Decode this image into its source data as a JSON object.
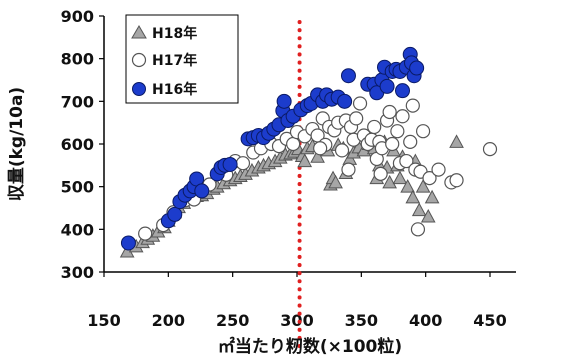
{
  "chart_data": {
    "type": "scatter",
    "title": "",
    "xlabel": "㎡当たり籾数(×100粒)",
    "ylabel": "収量(kg/10a)",
    "xlim": [
      150,
      450
    ],
    "ylim": [
      300,
      900
    ],
    "x_ticks": [
      150,
      200,
      250,
      300,
      350,
      400,
      450
    ],
    "y_ticks": [
      300,
      400,
      500,
      600,
      700,
      800,
      900
    ],
    "x_tick_labels": [
      "150",
      "200",
      "250",
      "300",
      "350",
      "400",
      "450"
    ],
    "y_tick_labels": [
      "300",
      "400",
      "500",
      "600",
      "700",
      "800",
      "900"
    ],
    "grid": false,
    "legend_position": "top-left",
    "reference_line": {
      "x": 302,
      "style": "dotted",
      "color": "#e02020"
    },
    "series": [
      {
        "name": "H18年",
        "marker": "triangle",
        "color": "#a6a6a6",
        "points": [
          [
            168,
            348
          ],
          [
            175,
            360
          ],
          [
            180,
            370
          ],
          [
            184,
            378
          ],
          [
            188,
            385
          ],
          [
            192,
            395
          ],
          [
            197,
            405
          ],
          [
            200,
            420
          ],
          [
            205,
            440
          ],
          [
            208,
            452
          ],
          [
            212,
            462
          ],
          [
            215,
            470
          ],
          [
            218,
            472
          ],
          [
            222,
            478
          ],
          [
            226,
            480
          ],
          [
            230,
            485
          ],
          [
            235,
            495
          ],
          [
            238,
            500
          ],
          [
            243,
            508
          ],
          [
            248,
            515
          ],
          [
            252,
            520
          ],
          [
            256,
            525
          ],
          [
            260,
            530
          ],
          [
            265,
            538
          ],
          [
            270,
            545
          ],
          [
            274,
            550
          ],
          [
            278,
            555
          ],
          [
            283,
            560
          ],
          [
            287,
            568
          ],
          [
            291,
            575
          ],
          [
            295,
            578
          ],
          [
            298,
            582
          ],
          [
            301,
            588
          ],
          [
            304,
            572
          ],
          [
            306,
            560
          ],
          [
            308,
            590
          ],
          [
            312,
            595
          ],
          [
            316,
            570
          ],
          [
            320,
            600
          ],
          [
            324,
            585
          ],
          [
            326,
            505
          ],
          [
            328,
            520
          ],
          [
            330,
            510
          ],
          [
            332,
            598
          ],
          [
            336,
            590
          ],
          [
            338,
            532
          ],
          [
            341,
            565
          ],
          [
            344,
            580
          ],
          [
            348,
            592
          ],
          [
            352,
            585
          ],
          [
            356,
            600
          ],
          [
            360,
            590
          ],
          [
            362,
            520
          ],
          [
            364,
            550
          ],
          [
            368,
            605
          ],
          [
            370,
            545
          ],
          [
            372,
            510
          ],
          [
            375,
            585
          ],
          [
            378,
            550
          ],
          [
            380,
            520
          ],
          [
            382,
            570
          ],
          [
            386,
            500
          ],
          [
            390,
            475
          ],
          [
            392,
            560
          ],
          [
            395,
            445
          ],
          [
            398,
            500
          ],
          [
            402,
            430
          ],
          [
            405,
            475
          ],
          [
            424,
            605
          ]
        ]
      },
      {
        "name": "H17年",
        "marker": "circle",
        "color": "#ffffff",
        "points": [
          [
            182,
            390
          ],
          [
            196,
            410
          ],
          [
            204,
            440
          ],
          [
            213,
            468
          ],
          [
            220,
            470
          ],
          [
            232,
            505
          ],
          [
            245,
            528
          ],
          [
            252,
            560
          ],
          [
            258,
            555
          ],
          [
            266,
            580
          ],
          [
            272,
            590
          ],
          [
            280,
            600
          ],
          [
            286,
            595
          ],
          [
            292,
            612
          ],
          [
            297,
            600
          ],
          [
            300,
            628
          ],
          [
            306,
            618
          ],
          [
            312,
            635
          ],
          [
            316,
            620
          ],
          [
            320,
            660
          ],
          [
            325,
            640
          ],
          [
            329,
            632
          ],
          [
            332,
            650
          ],
          [
            335,
            585
          ],
          [
            338,
            655
          ],
          [
            342,
            640
          ],
          [
            344,
            610
          ],
          [
            346,
            660
          ],
          [
            349,
            695
          ],
          [
            352,
            620
          ],
          [
            355,
            600
          ],
          [
            358,
            610
          ],
          [
            360,
            640
          ],
          [
            362,
            565
          ],
          [
            364,
            605
          ],
          [
            366,
            590
          ],
          [
            370,
            655
          ],
          [
            372,
            675
          ],
          [
            374,
            600
          ],
          [
            378,
            630
          ],
          [
            380,
            555
          ],
          [
            382,
            665
          ],
          [
            385,
            560
          ],
          [
            388,
            605
          ],
          [
            390,
            690
          ],
          [
            392,
            540
          ],
          [
            394,
            400
          ],
          [
            396,
            535
          ],
          [
            398,
            630
          ],
          [
            403,
            520
          ],
          [
            410,
            540
          ],
          [
            420,
            510
          ],
          [
            424,
            515
          ],
          [
            450,
            588
          ],
          [
            340,
            540
          ],
          [
            365,
            530
          ],
          [
            322,
            598
          ],
          [
            318,
            590
          ]
        ]
      },
      {
        "name": "H16年",
        "marker": "circle",
        "color": "#1c3ccc",
        "points": [
          [
            169,
            368
          ],
          [
            200,
            420
          ],
          [
            205,
            435
          ],
          [
            209,
            465
          ],
          [
            213,
            480
          ],
          [
            217,
            490
          ],
          [
            220,
            500
          ],
          [
            222,
            518
          ],
          [
            226,
            490
          ],
          [
            238,
            530
          ],
          [
            241,
            545
          ],
          [
            244,
            550
          ],
          [
            248,
            552
          ],
          [
            262,
            612
          ],
          [
            266,
            615
          ],
          [
            270,
            620
          ],
          [
            274,
            615
          ],
          [
            278,
            625
          ],
          [
            282,
            635
          ],
          [
            286,
            645
          ],
          [
            289,
            678
          ],
          [
            290,
            700
          ],
          [
            293,
            655
          ],
          [
            297,
            665
          ],
          [
            303,
            680
          ],
          [
            308,
            690
          ],
          [
            311,
            695
          ],
          [
            316,
            715
          ],
          [
            320,
            700
          ],
          [
            323,
            715
          ],
          [
            327,
            705
          ],
          [
            332,
            710
          ],
          [
            337,
            700
          ],
          [
            340,
            760
          ],
          [
            355,
            740
          ],
          [
            360,
            740
          ],
          [
            362,
            720
          ],
          [
            366,
            750
          ],
          [
            368,
            780
          ],
          [
            370,
            735
          ],
          [
            374,
            770
          ],
          [
            377,
            775
          ],
          [
            380,
            770
          ],
          [
            382,
            725
          ],
          [
            385,
            780
          ],
          [
            388,
            810
          ],
          [
            389,
            790
          ],
          [
            391,
            760
          ],
          [
            393,
            778
          ]
        ]
      }
    ]
  }
}
